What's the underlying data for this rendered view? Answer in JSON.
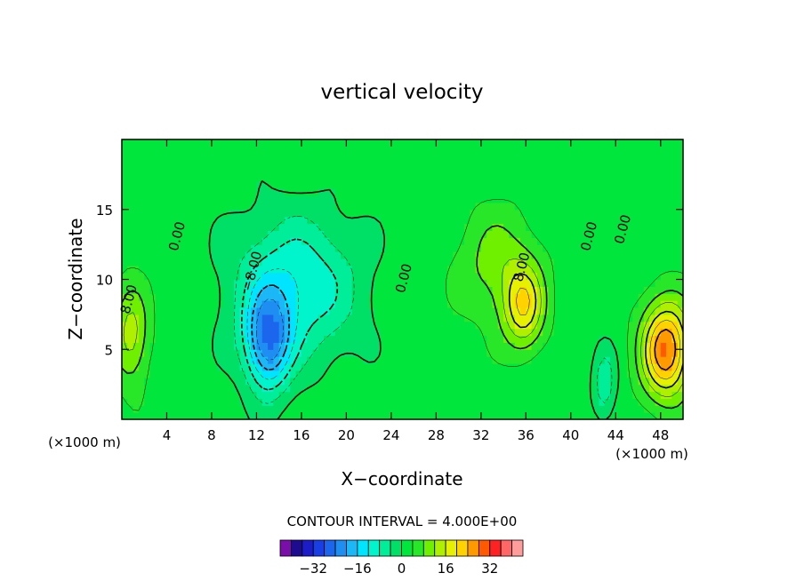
{
  "chart_data": {
    "type": "heatmap",
    "title": "vertical velocity",
    "xlabel": "X−coordinate",
    "ylabel": "Z−coordinate",
    "x_unit_left": "(×1000 m)",
    "x_unit_right": "(×1000 m)",
    "xlim": [
      0,
      50
    ],
    "ylim": [
      0,
      20
    ],
    "x_ticks": [
      4,
      8,
      12,
      16,
      20,
      24,
      28,
      32,
      36,
      40,
      44,
      48
    ],
    "x_tick_labels": [
      "4",
      "8",
      "12",
      "16",
      "20",
      "24",
      "28",
      "32",
      "36",
      "40",
      "44",
      "48"
    ],
    "y_ticks": [
      5,
      10,
      15
    ],
    "y_tick_labels": [
      "5",
      "10",
      "15"
    ],
    "contour_interval_text": "CONTOUR INTERVAL = 4.000E+00",
    "contour_interval": 4,
    "contour_labels": [
      {
        "text": "0.00",
        "x": 5.3,
        "z": 13.0
      },
      {
        "text": "0.00",
        "x": 25.5,
        "z": 10.0
      },
      {
        "text": "0.00",
        "x": 42.0,
        "z": 13.0
      },
      {
        "text": "0.00",
        "x": 45.0,
        "z": 13.5
      },
      {
        "text": "8.00",
        "x": 1.0,
        "z": 8.5
      },
      {
        "text": "8.00",
        "x": 36.0,
        "z": 10.8
      },
      {
        "text": "−8.00",
        "x": 12.0,
        "z": 10.5
      }
    ],
    "field_features": [
      {
        "kind": "downdraft",
        "x": 13.0,
        "z": 5.5,
        "sx": 2.0,
        "sz": 3.5,
        "value": -22
      },
      {
        "kind": "downdraft",
        "x": 15.5,
        "z": 9.5,
        "sx": 5.5,
        "sz": 5.0,
        "value": -14
      },
      {
        "kind": "downdraft",
        "x": 43.0,
        "z": 2.5,
        "sx": 1.0,
        "sz": 2.5,
        "value": -9
      },
      {
        "kind": "updraft",
        "x": 48.5,
        "z": 5.0,
        "sx": 2.2,
        "sz": 3.5,
        "value": 26
      },
      {
        "kind": "updraft",
        "x": 35.8,
        "z": 8.0,
        "sx": 1.8,
        "sz": 3.0,
        "value": 16
      },
      {
        "kind": "updraft",
        "x": 33.5,
        "z": 11.0,
        "sx": 3.5,
        "sz": 4.0,
        "value": 8
      },
      {
        "kind": "updraft",
        "x": 0.8,
        "z": 6.0,
        "sx": 1.6,
        "sz": 3.5,
        "value": 12
      }
    ],
    "colorbar": {
      "levels": [
        -40,
        -36,
        -32,
        -28,
        -24,
        -20,
        -16,
        -12,
        -8,
        -4,
        0,
        4,
        8,
        12,
        16,
        20,
        24,
        28,
        32,
        36,
        40
      ],
      "colors": [
        "#7a0ea8",
        "#1d0c8f",
        "#1c1cc9",
        "#1a3ee6",
        "#1c66ee",
        "#1f8ef3",
        "#1bb7f7",
        "#00e5ff",
        "#00f5cc",
        "#00ee99",
        "#00e066",
        "#00e63c",
        "#28e628",
        "#6ef000",
        "#aef000",
        "#e6f000",
        "#ffd200",
        "#ff9900",
        "#ff5a00",
        "#ff2222",
        "#ff6666",
        "#ff9c9c"
      ],
      "tick_values": [
        -32,
        -16,
        0,
        16,
        32
      ],
      "tick_labels": [
        "−32",
        "−16",
        "0",
        "16",
        "32"
      ]
    }
  }
}
